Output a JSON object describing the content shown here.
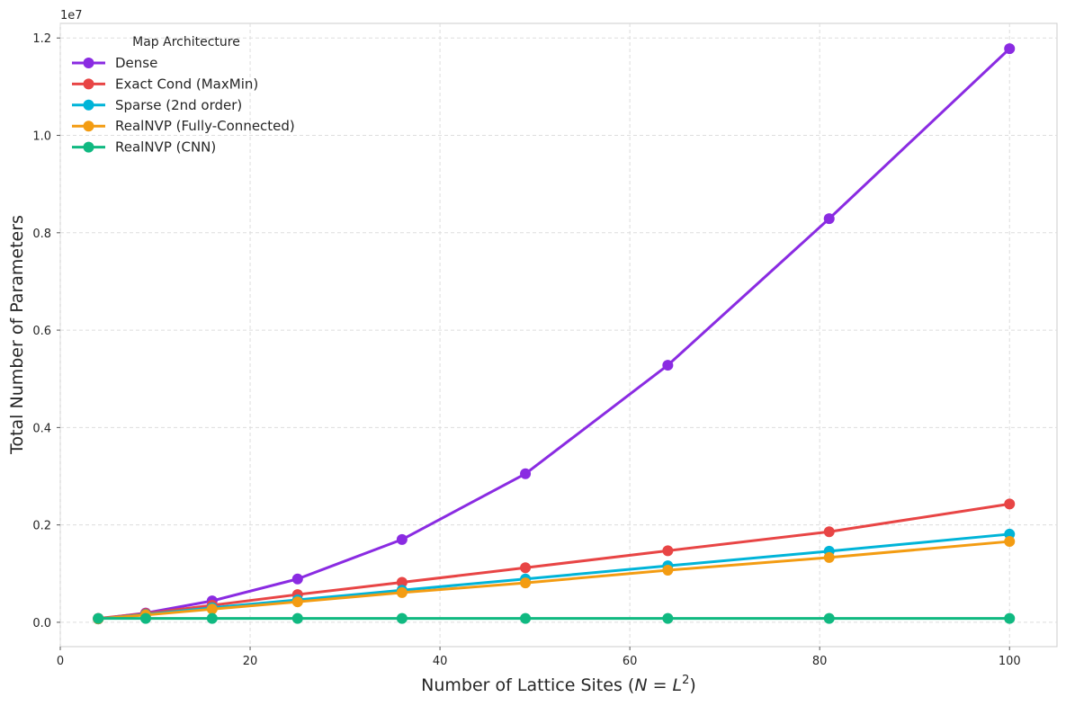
{
  "chart_data": {
    "type": "line",
    "title": "",
    "xlabel": "Number of Lattice Sites (",
    "xlabel_math": "N = L",
    "xlabel_sup": "2",
    "xlabel_end": ")",
    "ylabel": "Total Number of Parameters",
    "y_scale_label": "1e7",
    "xlim": [
      0,
      105
    ],
    "ylim": [
      -0.05,
      1.23
    ],
    "y_multiplier": 10000000,
    "x_ticks": [
      0,
      20,
      40,
      60,
      80,
      100
    ],
    "y_ticks": [
      0.0,
      0.2,
      0.4,
      0.6,
      0.8,
      1.0,
      1.2
    ],
    "x_tick_labels": [
      "0",
      "20",
      "40",
      "60",
      "80",
      "100"
    ],
    "y_tick_labels": [
      "0.0",
      "0.2",
      "0.4",
      "0.6",
      "0.8",
      "1.0",
      "1.2"
    ],
    "grid": true,
    "legend_title": "Map Architecture",
    "legend_position": "top-left",
    "x": [
      4,
      9,
      16,
      25,
      36,
      49,
      64,
      81,
      100
    ],
    "series": [
      {
        "name": "Dense",
        "color": "#8a2be2",
        "values": [
          0.007,
          0.019,
          0.044,
          0.089,
          0.17,
          0.305,
          0.528,
          0.829,
          1.178
        ]
      },
      {
        "name": "Exact Cond (MaxMin)",
        "color": "#e84545",
        "values": [
          0.008,
          0.018,
          0.035,
          0.057,
          0.082,
          0.112,
          0.147,
          0.186,
          0.243
        ]
      },
      {
        "name": "Sparse (2nd order)",
        "color": "#00b4d8",
        "values": [
          0.007,
          0.016,
          0.03,
          0.046,
          0.066,
          0.089,
          0.116,
          0.146,
          0.181
        ]
      },
      {
        "name": "RealNVP (Fully-Connected)",
        "color": "#f39c12",
        "values": [
          0.007,
          0.015,
          0.027,
          0.042,
          0.061,
          0.081,
          0.107,
          0.133,
          0.166
        ]
      },
      {
        "name": "RealNVP (CNN)",
        "color": "#10b981",
        "values": [
          0.008,
          0.008,
          0.008,
          0.008,
          0.008,
          0.008,
          0.008,
          0.008,
          0.008
        ]
      }
    ]
  }
}
